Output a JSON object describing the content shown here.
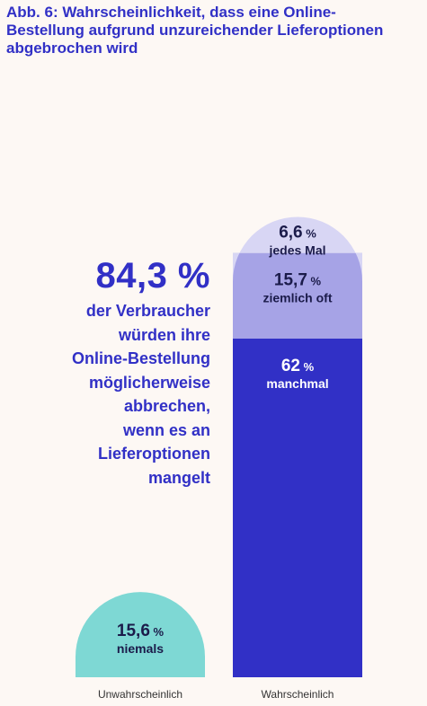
{
  "title_lines": [
    "Abb. 6: Wahrscheinlichkeit, dass eine Online-",
    "Bestellung aufgrund unzureichender Lieferoptionen",
    "abgebrochen wird"
  ],
  "headline": {
    "value": "84,3 %",
    "lines": [
      "der Verbraucher",
      "würden ihre",
      "Online-Bestellung",
      "möglicherweise",
      "abbrechen,",
      "wenn es an",
      "Lieferoptionen",
      "mangelt"
    ]
  },
  "chart_data": {
    "type": "bar",
    "title": "Abb. 6: Wahrscheinlichkeit, dass eine Online-Bestellung aufgrund unzureichender Lieferoptionen abgebrochen wird",
    "categories": [
      "Unwahrscheinlich",
      "Wahrscheinlich"
    ],
    "unit": "%",
    "stacked": true,
    "series": [
      {
        "name": "niemals",
        "values": [
          15.6,
          null
        ],
        "labels": [
          "15,6",
          null
        ],
        "color": "#7ed8d4",
        "text_color": "#1b1b4a"
      },
      {
        "name": "manchmal",
        "values": [
          null,
          62
        ],
        "labels": [
          null,
          "62"
        ],
        "color": "#3130c6",
        "text_color": "#ffffff"
      },
      {
        "name": "ziemlich oft",
        "values": [
          null,
          15.7
        ],
        "labels": [
          null,
          "15,7"
        ],
        "color": "#a6a3e6",
        "text_color": "#1b1b4a"
      },
      {
        "name": "jedes Mal",
        "values": [
          null,
          6.6
        ],
        "labels": [
          null,
          "6,6"
        ],
        "color": "#d8d6f4",
        "text_color": "#1b1b4a"
      }
    ],
    "grid": false,
    "legend": "none",
    "colors": {
      "axis_label": "#333333",
      "background": "#fdf8f4"
    }
  }
}
